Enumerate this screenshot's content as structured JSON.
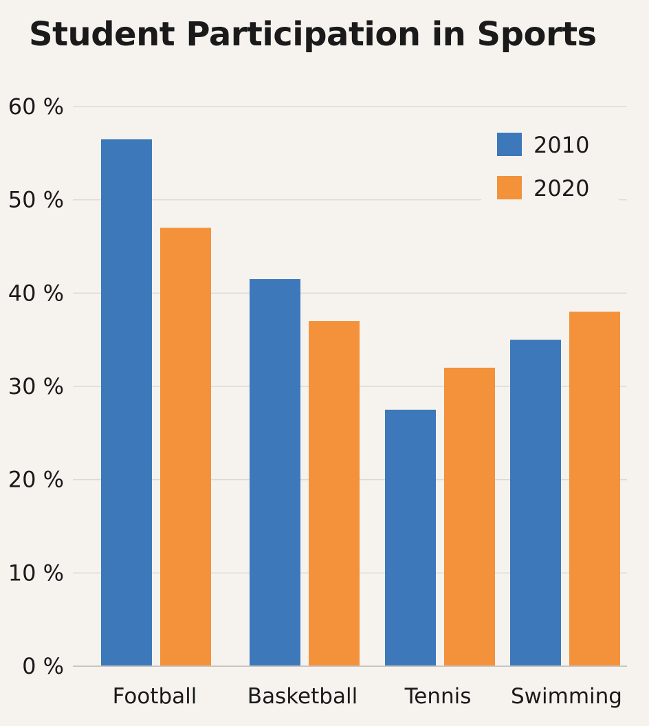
{
  "chart_data": {
    "type": "bar",
    "title": "Student Participation in Sports",
    "xlabel": "",
    "ylabel": "",
    "categories": [
      "Football",
      "Basketball",
      "Tennis",
      "Swimming"
    ],
    "series": [
      {
        "name": "2010",
        "color": "#3c78ba",
        "values": [
          56.5,
          41.5,
          27.5,
          35
        ]
      },
      {
        "name": "2020",
        "color": "#f3923a",
        "values": [
          47,
          37,
          32,
          38
        ]
      }
    ],
    "ylim": [
      0,
      60
    ],
    "yticks": [
      0,
      10,
      20,
      30,
      40,
      50,
      60
    ],
    "ytick_labels": [
      "0 %",
      "10 %",
      "20 %",
      "30 %",
      "40 %",
      "50 %",
      "60 %"
    ],
    "grid": true,
    "legend_position": "top-right"
  }
}
